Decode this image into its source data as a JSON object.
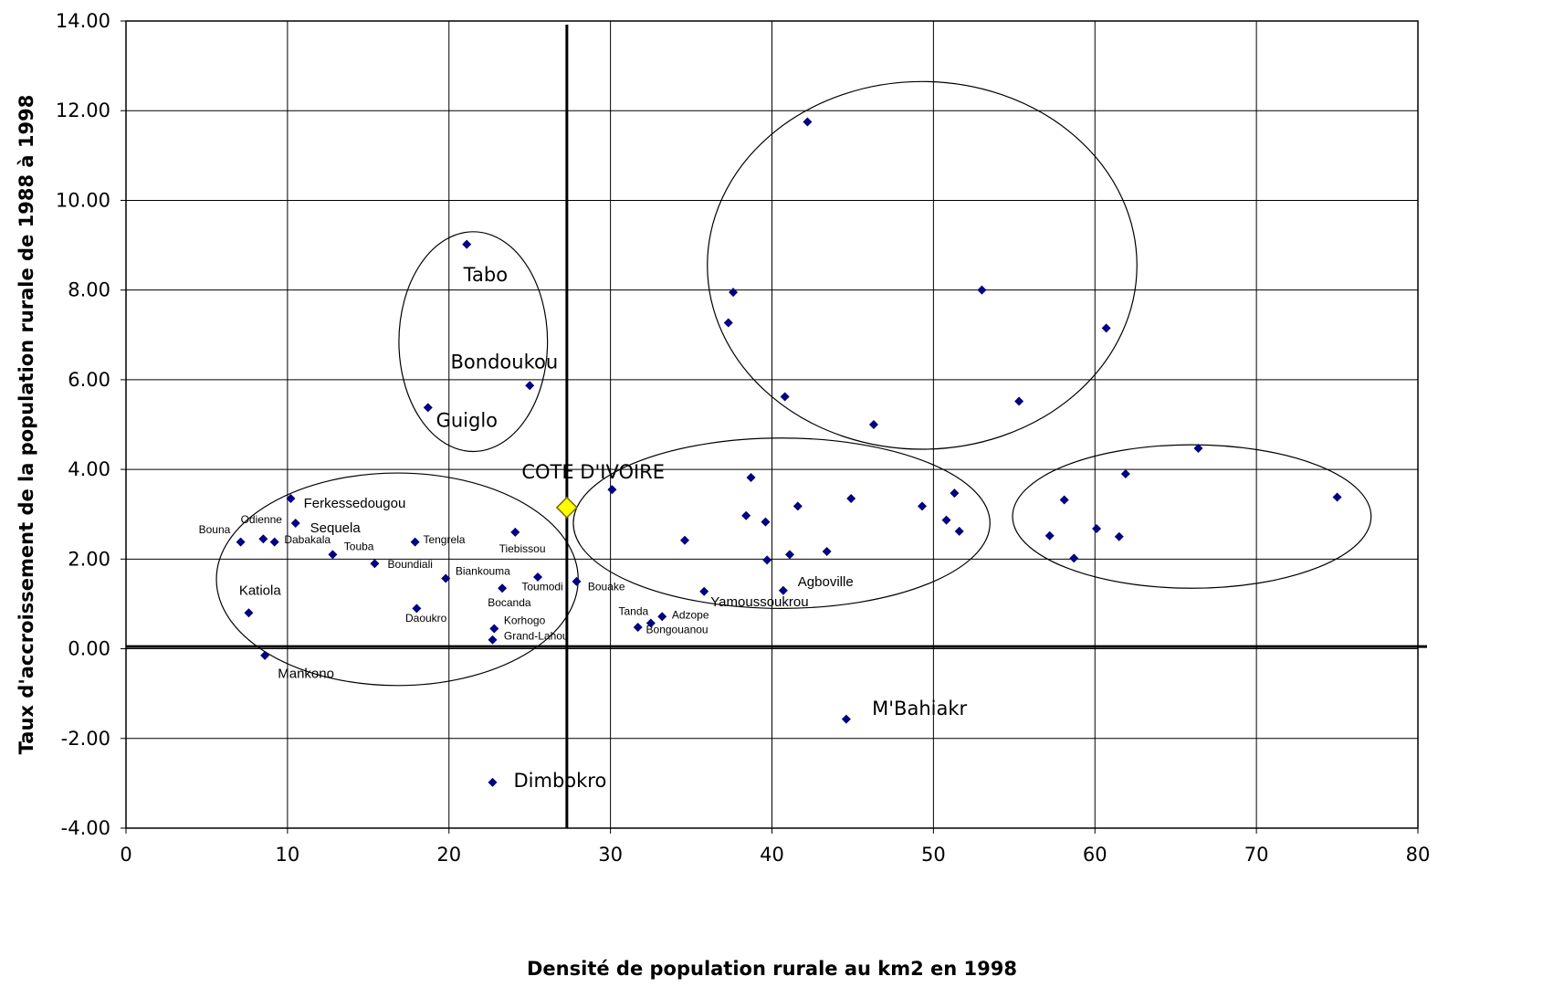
{
  "chart_data": {
    "type": "scatter",
    "title": "",
    "xlabel": "Densité de population rurale au km2 en 1998",
    "ylabel": "Taux d'accroissement de la population rurale de 1988 à 1998",
    "xlim": [
      0,
      80
    ],
    "ylim": [
      -4,
      14
    ],
    "x_ticks": [
      "0",
      "10",
      "20",
      "30",
      "40",
      "50",
      "60",
      "70",
      "80"
    ],
    "y_ticks": [
      "-4.00",
      "-2.00",
      "0.00",
      "2.00",
      "4.00",
      "6.00",
      "8.00",
      "10.00",
      "12.00",
      "14.00"
    ],
    "grid": true,
    "reference_lines": {
      "x": 27.3,
      "y": 0.05
    },
    "colors": {
      "points": "#000080",
      "highlight": "#ffff00",
      "highlight_border": "#7a6a00"
    },
    "highlight_point": {
      "label": "COTE D'IVOIRE",
      "x": 27.3,
      "y": 3.15
    },
    "points": [
      {
        "x": 7.1,
        "y": 2.38,
        "label": "Bouna"
      },
      {
        "x": 8.5,
        "y": 2.45,
        "label": "Odienne"
      },
      {
        "x": 9.2,
        "y": 2.38,
        "label": "Dabakala"
      },
      {
        "x": 10.2,
        "y": 3.35,
        "label": "Ferkessedougou"
      },
      {
        "x": 10.5,
        "y": 2.8,
        "label": "Sequela"
      },
      {
        "x": 12.8,
        "y": 2.1,
        "label": "Touba"
      },
      {
        "x": 15.4,
        "y": 1.9,
        "label": "Boundiali"
      },
      {
        "x": 17.9,
        "y": 2.38,
        "label": "Tengrela"
      },
      {
        "x": 19.8,
        "y": 1.57,
        "label": "Biankouma"
      },
      {
        "x": 7.6,
        "y": 0.8,
        "label": "Katiola"
      },
      {
        "x": 8.6,
        "y": -0.15,
        "label": "Mankono"
      },
      {
        "x": 18.0,
        "y": 0.9,
        "label": "Daoukro"
      },
      {
        "x": 23.3,
        "y": 1.35,
        "label": "Bocanda"
      },
      {
        "x": 25.5,
        "y": 1.6,
        "label": "Toumodi"
      },
      {
        "x": 24.1,
        "y": 2.6,
        "label": "Tiebissou"
      },
      {
        "x": 27.9,
        "y": 1.5,
        "label": "Bouake"
      },
      {
        "x": 22.8,
        "y": 0.45,
        "label": "Korhogo"
      },
      {
        "x": 22.7,
        "y": 0.2,
        "label": "Grand-Lahou"
      },
      {
        "x": 18.7,
        "y": 5.38,
        "label": "Guiglo"
      },
      {
        "x": 25.0,
        "y": 5.87,
        "label": "Bondoukou"
      },
      {
        "x": 21.1,
        "y": 9.02,
        "label": "Tabo"
      },
      {
        "x": 22.7,
        "y": -2.98,
        "label": "Dimbokro"
      },
      {
        "x": 30.1,
        "y": 3.55,
        "label": ""
      },
      {
        "x": 34.6,
        "y": 2.42,
        "label": ""
      },
      {
        "x": 35.8,
        "y": 1.28,
        "label": "Yamoussoukrou"
      },
      {
        "x": 31.7,
        "y": 0.48,
        "label": "Tanda"
      },
      {
        "x": 32.5,
        "y": 0.57,
        "label": "Bongouanou"
      },
      {
        "x": 33.2,
        "y": 0.72,
        "label": "Adzope"
      },
      {
        "x": 38.4,
        "y": 2.97,
        "label": ""
      },
      {
        "x": 38.7,
        "y": 3.82,
        "label": ""
      },
      {
        "x": 39.6,
        "y": 2.83,
        "label": ""
      },
      {
        "x": 39.7,
        "y": 1.98,
        "label": ""
      },
      {
        "x": 40.7,
        "y": 1.3,
        "label": "Agboville"
      },
      {
        "x": 41.1,
        "y": 2.1,
        "label": ""
      },
      {
        "x": 41.6,
        "y": 3.18,
        "label": ""
      },
      {
        "x": 43.4,
        "y": 2.17,
        "label": ""
      },
      {
        "x": 44.9,
        "y": 3.35,
        "label": ""
      },
      {
        "x": 44.6,
        "y": -1.57,
        "label": "M'Bahiakr"
      },
      {
        "x": 49.3,
        "y": 3.18,
        "label": ""
      },
      {
        "x": 50.8,
        "y": 2.87,
        "label": ""
      },
      {
        "x": 51.3,
        "y": 3.47,
        "label": ""
      },
      {
        "x": 51.6,
        "y": 2.62,
        "label": ""
      },
      {
        "x": 37.3,
        "y": 7.27,
        "label": ""
      },
      {
        "x": 37.6,
        "y": 7.95,
        "label": ""
      },
      {
        "x": 40.8,
        "y": 5.62,
        "label": ""
      },
      {
        "x": 42.2,
        "y": 11.75,
        "label": ""
      },
      {
        "x": 46.3,
        "y": 5.0,
        "label": ""
      },
      {
        "x": 53.0,
        "y": 8.0,
        "label": ""
      },
      {
        "x": 55.3,
        "y": 5.52,
        "label": ""
      },
      {
        "x": 60.7,
        "y": 7.15,
        "label": ""
      },
      {
        "x": 57.2,
        "y": 2.52,
        "label": ""
      },
      {
        "x": 58.1,
        "y": 3.32,
        "label": ""
      },
      {
        "x": 58.7,
        "y": 2.02,
        "label": ""
      },
      {
        "x": 60.1,
        "y": 2.68,
        "label": ""
      },
      {
        "x": 61.5,
        "y": 2.5,
        "label": ""
      },
      {
        "x": 61.9,
        "y": 3.9,
        "label": ""
      },
      {
        "x": 66.4,
        "y": 4.47,
        "label": ""
      },
      {
        "x": 75.0,
        "y": 3.38,
        "label": ""
      }
    ],
    "annotations": [
      {
        "text": "Tabo",
        "x": 20.9,
        "y": 8.2,
        "size": "lg"
      },
      {
        "text": "Bondoukou",
        "x": 20.1,
        "y": 6.25,
        "size": "lg"
      },
      {
        "text": "Guiglo",
        "x": 19.2,
        "y": 4.95,
        "size": "lg"
      },
      {
        "text": "COTE D'IVOIRE",
        "x": 24.5,
        "y": 3.8,
        "size": "lg"
      },
      {
        "text": "Ferkessedougou",
        "x": 11.0,
        "y": 3.15,
        "size": "md"
      },
      {
        "text": "Sequela",
        "x": 11.4,
        "y": 2.6,
        "size": "md"
      },
      {
        "text": "Odienne",
        "x": 7.1,
        "y": 2.8,
        "size": "sm"
      },
      {
        "text": "Bouna",
        "x": 4.5,
        "y": 2.58,
        "size": "sm"
      },
      {
        "text": "Dabakala",
        "x": 9.8,
        "y": 2.35,
        "size": "sm"
      },
      {
        "text": "Touba",
        "x": 13.5,
        "y": 2.2,
        "size": "sm"
      },
      {
        "text": "Tengrela",
        "x": 18.4,
        "y": 2.35,
        "size": "sm"
      },
      {
        "text": "Boundiali",
        "x": 16.2,
        "y": 1.8,
        "size": "sm"
      },
      {
        "text": "Biankouma",
        "x": 20.4,
        "y": 1.65,
        "size": "sm"
      },
      {
        "text": "Tiebissou",
        "x": 23.1,
        "y": 2.15,
        "size": "sm"
      },
      {
        "text": "Toumodi",
        "x": 24.5,
        "y": 1.3,
        "size": "sm"
      },
      {
        "text": "Bouake",
        "x": 28.6,
        "y": 1.3,
        "size": "sm"
      },
      {
        "text": "Bocanda",
        "x": 22.4,
        "y": 0.95,
        "size": "sm"
      },
      {
        "text": "Katiola",
        "x": 7.0,
        "y": 1.2,
        "size": "md"
      },
      {
        "text": "Daoukro",
        "x": 17.3,
        "y": 0.6,
        "size": "sm"
      },
      {
        "text": "Korhogo",
        "x": 23.4,
        "y": 0.55,
        "size": "sm"
      },
      {
        "text": "Grand-Lahou",
        "x": 23.4,
        "y": 0.2,
        "size": "sm"
      },
      {
        "text": "Mankono",
        "x": 9.4,
        "y": -0.65,
        "size": "md"
      },
      {
        "text": "Dimbokro",
        "x": 24.0,
        "y": -3.08,
        "size": "lg"
      },
      {
        "text": "Tanda",
        "x": 30.5,
        "y": 0.75,
        "size": "sm"
      },
      {
        "text": "Adzope",
        "x": 33.8,
        "y": 0.67,
        "size": "sm"
      },
      {
        "text": "Bongouanou",
        "x": 32.2,
        "y": 0.35,
        "size": "sm"
      },
      {
        "text": "Yamoussoukrou",
        "x": 36.2,
        "y": 0.95,
        "size": "md"
      },
      {
        "text": "Agboville",
        "x": 41.6,
        "y": 1.4,
        "size": "md"
      },
      {
        "text": "M'Bahiakr",
        "x": 46.2,
        "y": -1.48,
        "size": "lg"
      }
    ],
    "ellipses": [
      {
        "cx": 16.8,
        "cy": 1.55,
        "rx": 11.2,
        "ry": 2.37
      },
      {
        "cx": 21.5,
        "cy": 6.85,
        "rx": 4.6,
        "ry": 2.45
      },
      {
        "cx": 49.3,
        "cy": 8.55,
        "rx": 13.3,
        "ry": 4.1
      },
      {
        "cx": 40.6,
        "cy": 2.8,
        "rx": 12.9,
        "ry": 1.9
      },
      {
        "cx": 66.0,
        "cy": 2.95,
        "rx": 11.1,
        "ry": 1.6
      }
    ]
  }
}
